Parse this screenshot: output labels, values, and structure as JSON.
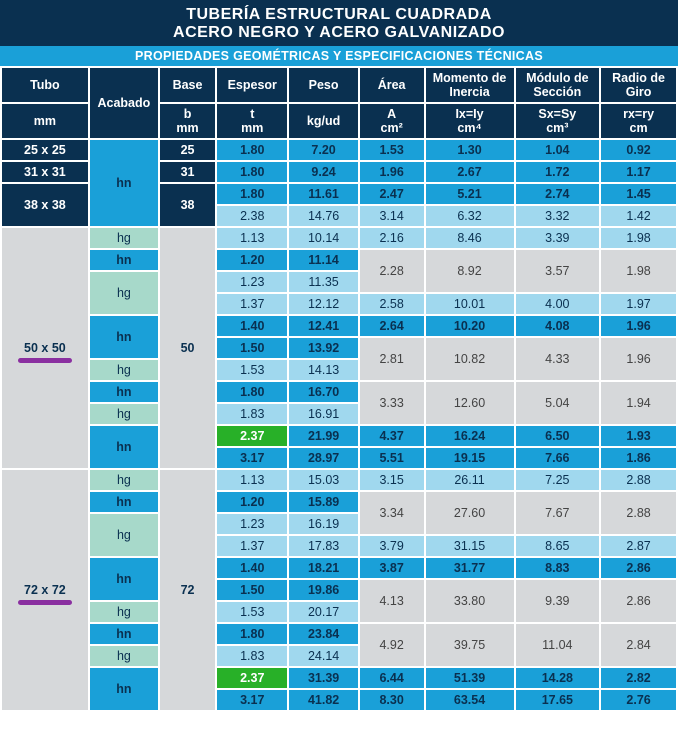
{
  "title1": "TUBERÍA ESTRUCTURAL CUADRADA",
  "title2": "ACERO NEGRO Y ACERO GALVANIZADO",
  "subtitle": "PROPIEDADES GEOMÉTRICAS Y ESPECIFICACIONES TÉCNICAS",
  "headers": {
    "tubo": "Tubo",
    "acabado": "Acabado",
    "base": "Base",
    "espesor": "Espesor",
    "peso": "Peso",
    "area": "Área",
    "momento": "Momento de Inercia",
    "modulo": "Módulo de Sección",
    "radio": "Radio de Giro",
    "mm": "mm",
    "b": "b",
    "t": "t",
    "kg": "kg/ud",
    "acm": "A",
    "ix": "Ix=Iy",
    "sx": "Sx=Sy",
    "rx": "rx=ry",
    "cm2": "cm²",
    "cm4": "cm⁴",
    "cm3": "cm³",
    "cm": "cm"
  },
  "tubo25": "25 x 25",
  "tubo31": "31 x 31",
  "tubo38": "38 x 38",
  "tubo50": "50 x 50",
  "tubo72": "72 x 72",
  "hn": "hn",
  "hg": "hg",
  "b25": "25",
  "b31": "31",
  "b38": "38",
  "b50": "50",
  "b72": "72",
  "r25": {
    "t": "1.80",
    "p": "7.20",
    "a": "1.53",
    "i": "1.30",
    "s": "1.04",
    "r": "0.92"
  },
  "r31": {
    "t": "1.80",
    "p": "9.24",
    "a": "1.96",
    "i": "2.67",
    "s": "1.72",
    "r": "1.17"
  },
  "r38a": {
    "t": "1.80",
    "p": "11.61",
    "a": "2.47",
    "i": "5.21",
    "s": "2.74",
    "r": "1.45"
  },
  "r38b": {
    "t": "2.38",
    "p": "14.76",
    "a": "3.14",
    "i": "6.32",
    "s": "3.32",
    "r": "1.42"
  },
  "r50_1": {
    "t": "1.13",
    "p": "10.14",
    "a": "2.16",
    "i": "8.46",
    "s": "3.39",
    "r": "1.98"
  },
  "r50_2": {
    "t": "1.20",
    "p": "11.14",
    "a": "2.28",
    "i": "8.92",
    "s": "3.57",
    "r": "1.98"
  },
  "r50_3": {
    "t": "1.23",
    "p": "11.35"
  },
  "r50_4": {
    "t": "1.37",
    "p": "12.12",
    "a": "2.58",
    "i": "10.01",
    "s": "4.00",
    "r": "1.97"
  },
  "r50_5": {
    "t": "1.40",
    "p": "12.41",
    "a": "2.64",
    "i": "10.20",
    "s": "4.08",
    "r": "1.96"
  },
  "r50_6": {
    "t": "1.50",
    "p": "13.92",
    "a": "2.81",
    "i": "10.82",
    "s": "4.33",
    "r": "1.96"
  },
  "r50_7": {
    "t": "1.53",
    "p": "14.13"
  },
  "r50_8": {
    "t": "1.80",
    "p": "16.70",
    "a": "3.33",
    "i": "12.60",
    "s": "5.04",
    "r": "1.94"
  },
  "r50_9": {
    "t": "1.83",
    "p": "16.91"
  },
  "r50_10": {
    "t": "2.37",
    "p": "21.99",
    "a": "4.37",
    "i": "16.24",
    "s": "6.50",
    "r": "1.93"
  },
  "r50_11": {
    "t": "3.17",
    "p": "28.97",
    "a": "5.51",
    "i": "19.15",
    "s": "7.66",
    "r": "1.86"
  },
  "r72_1": {
    "t": "1.13",
    "p": "15.03",
    "a": "3.15",
    "i": "26.11",
    "s": "7.25",
    "r": "2.88"
  },
  "r72_2": {
    "t": "1.20",
    "p": "15.89",
    "a": "3.34",
    "i": "27.60",
    "s": "7.67",
    "r": "2.88"
  },
  "r72_3": {
    "t": "1.23",
    "p": "16.19"
  },
  "r72_4": {
    "t": "1.37",
    "p": "17.83",
    "a": "3.79",
    "i": "31.15",
    "s": "8.65",
    "r": "2.87"
  },
  "r72_5": {
    "t": "1.40",
    "p": "18.21",
    "a": "3.87",
    "i": "31.77",
    "s": "8.83",
    "r": "2.86"
  },
  "r72_6": {
    "t": "1.50",
    "p": "19.86",
    "a": "4.13",
    "i": "33.80",
    "s": "9.39",
    "r": "2.86"
  },
  "r72_7": {
    "t": "1.53",
    "p": "20.17"
  },
  "r72_8": {
    "t": "1.80",
    "p": "23.84",
    "a": "4.92",
    "i": "39.75",
    "s": "11.04",
    "r": "2.84"
  },
  "r72_9": {
    "t": "1.83",
    "p": "24.14"
  },
  "r72_10": {
    "t": "2.37",
    "p": "31.39",
    "a": "6.44",
    "i": "51.39",
    "s": "14.28",
    "r": "2.82"
  },
  "r72_11": {
    "t": "3.17",
    "p": "41.82",
    "a": "8.30",
    "i": "63.54",
    "s": "17.65",
    "r": "2.76"
  }
}
